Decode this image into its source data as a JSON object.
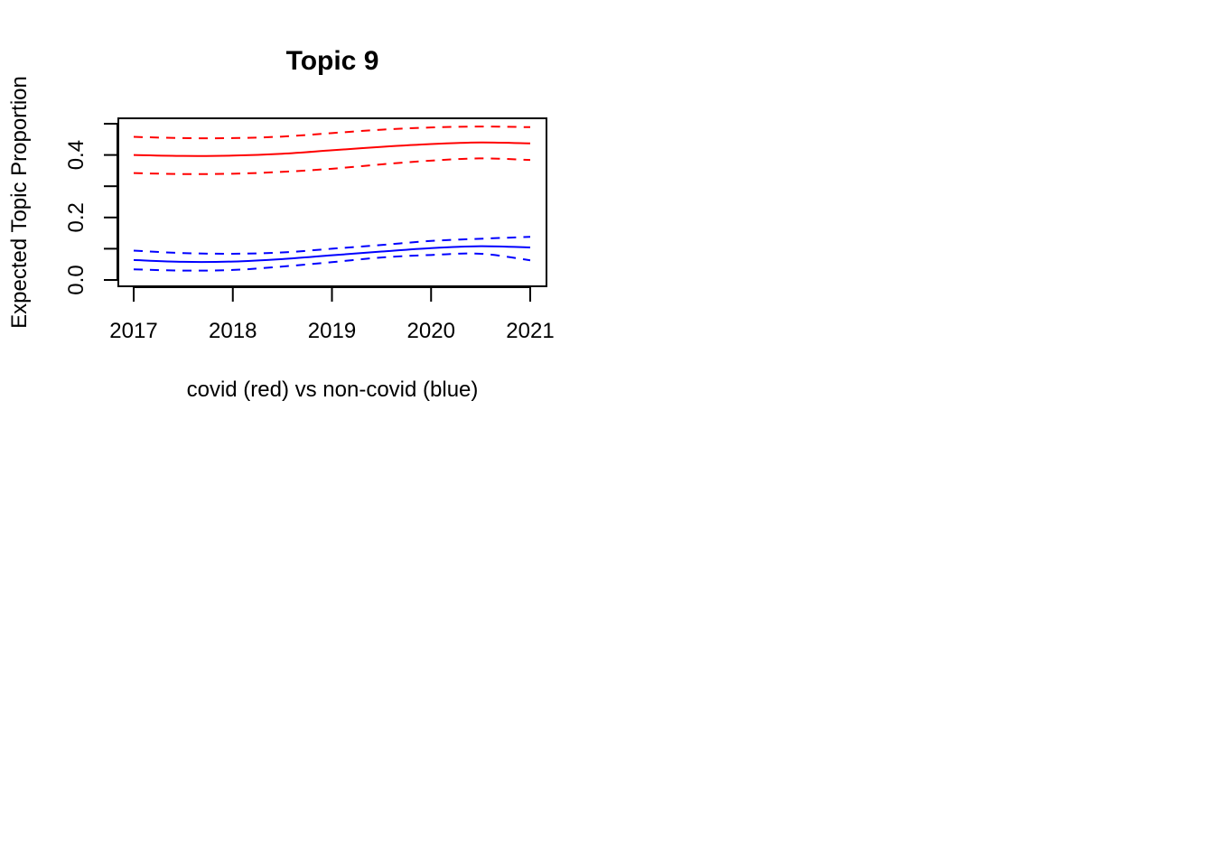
{
  "chart_data": {
    "type": "line",
    "title": "Topic 9",
    "xlabel": "covid (red) vs non-covid (blue)",
    "ylabel": "Expected Topic Proportion",
    "xlim": [
      2017,
      2021
    ],
    "ylim": [
      0.0,
      0.5
    ],
    "x_ticks": [
      "2017",
      "2018",
      "2019",
      "2020",
      "2021"
    ],
    "y_ticks": [
      "0.0",
      "0.2",
      "0.4"
    ],
    "y_tick_values": [
      0.0,
      0.1,
      0.2,
      0.3,
      0.4,
      0.5
    ],
    "grid": false,
    "x": [
      2017,
      2017.5,
      2018,
      2018.5,
      2019,
      2019.5,
      2020,
      2020.5,
      2021
    ],
    "series": [
      {
        "name": "covid",
        "color": "#ff0000",
        "mean": [
          0.4,
          0.397,
          0.398,
          0.404,
          0.415,
          0.426,
          0.435,
          0.44,
          0.437
        ],
        "upper": [
          0.458,
          0.454,
          0.454,
          0.459,
          0.47,
          0.481,
          0.488,
          0.491,
          0.489
        ],
        "lower": [
          0.342,
          0.339,
          0.34,
          0.346,
          0.356,
          0.37,
          0.382,
          0.389,
          0.384
        ]
      },
      {
        "name": "non-covid",
        "color": "#0000ff",
        "mean": [
          0.064,
          0.058,
          0.059,
          0.067,
          0.079,
          0.091,
          0.102,
          0.108,
          0.104
        ],
        "upper": [
          0.094,
          0.086,
          0.084,
          0.088,
          0.1,
          0.112,
          0.125,
          0.132,
          0.138
        ],
        "lower": [
          0.034,
          0.03,
          0.032,
          0.043,
          0.057,
          0.072,
          0.08,
          0.084,
          0.063
        ]
      }
    ]
  }
}
